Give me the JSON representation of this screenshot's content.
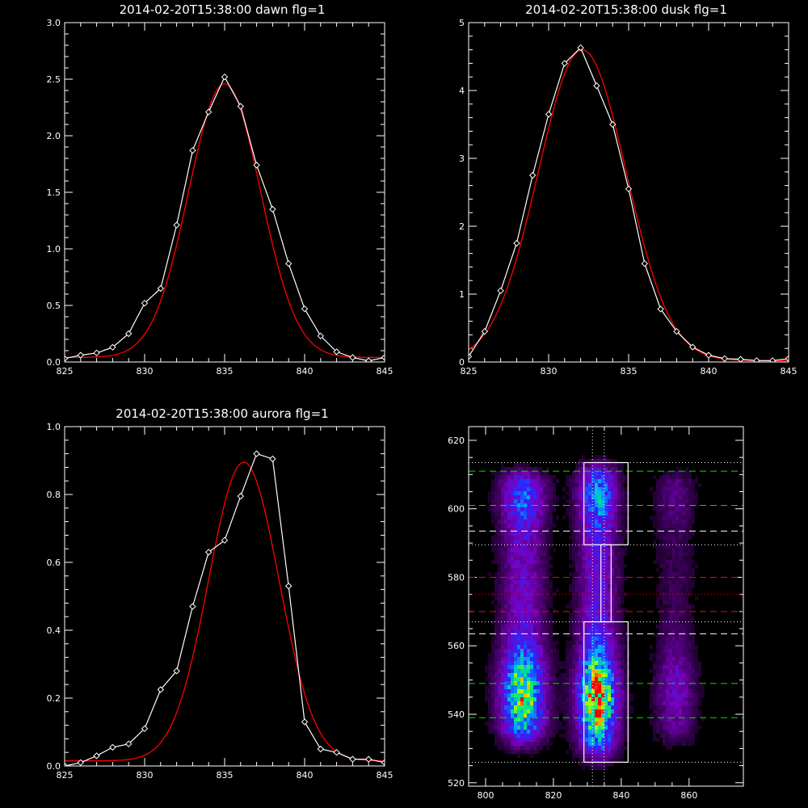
{
  "colors": {
    "background": "#000000",
    "data": "#ffffff",
    "fit": "#ff0000",
    "green": "#00e000",
    "red": "#ff0000",
    "white": "#ffffff"
  },
  "chart_data": [
    {
      "type": "line",
      "title": "2014-02-20T15:38:00 dawn flg=1",
      "xlim": [
        825,
        845
      ],
      "ylim": [
        0,
        3
      ],
      "xticks": [
        825,
        830,
        835,
        840,
        845
      ],
      "yticks": [
        0.0,
        0.5,
        1.0,
        1.5,
        2.0,
        2.5,
        3.0
      ],
      "xtick_labels": [
        "825",
        "830",
        "835",
        "840",
        "845"
      ],
      "ytick_labels": [
        "0.0",
        "0.5",
        "1.0",
        "1.5",
        "2.0",
        "2.5",
        "3.0"
      ],
      "series": [
        {
          "style": "data",
          "x": [
            825,
            826,
            827,
            828,
            829,
            830,
            831,
            832,
            833,
            834,
            835,
            836,
            837,
            838,
            839,
            840,
            841,
            842,
            843,
            844,
            845
          ],
          "y": [
            0.03,
            0.06,
            0.08,
            0.13,
            0.25,
            0.52,
            0.65,
            1.21,
            1.87,
            2.21,
            2.52,
            2.26,
            1.74,
            1.35,
            0.87,
            0.47,
            0.23,
            0.09,
            0.04,
            0.01,
            0.04
          ]
        },
        {
          "style": "fit",
          "gauss": {
            "amp": 2.42,
            "center": 835.0,
            "sigma": 2.25,
            "offset": 0.04
          }
        }
      ]
    },
    {
      "type": "line",
      "title": "2014-02-20T15:38:00 dusk flg=1",
      "xlim": [
        825,
        845
      ],
      "ylim": [
        0,
        5
      ],
      "xticks": [
        825,
        830,
        835,
        840,
        845
      ],
      "yticks": [
        0,
        1,
        2,
        3,
        4,
        5
      ],
      "xtick_labels": [
        "825",
        "830",
        "835",
        "840",
        "845"
      ],
      "ytick_labels": [
        "0",
        "1",
        "2",
        "3",
        "4",
        "5"
      ],
      "series": [
        {
          "style": "data",
          "x": [
            825,
            826,
            827,
            828,
            829,
            830,
            831,
            832,
            833,
            834,
            835,
            836,
            837,
            838,
            839,
            840,
            841,
            842,
            843,
            844,
            845
          ],
          "y": [
            0.08,
            0.45,
            1.05,
            1.75,
            2.75,
            3.65,
            4.4,
            4.63,
            4.07,
            3.5,
            2.55,
            1.45,
            0.78,
            0.45,
            0.22,
            0.1,
            0.05,
            0.04,
            0.02,
            0.02,
            0.05
          ]
        },
        {
          "style": "fit",
          "gauss": {
            "amp": 4.58,
            "center": 832.1,
            "sigma": 2.75,
            "offset": 0.02
          }
        }
      ]
    },
    {
      "type": "line",
      "title": "2014-02-20T15:38:00 aurora flg=1",
      "xlim": [
        825,
        845
      ],
      "ylim": [
        0,
        1
      ],
      "xticks": [
        825,
        830,
        835,
        840,
        845
      ],
      "yticks": [
        0.0,
        0.2,
        0.4,
        0.6,
        0.8,
        1.0
      ],
      "xtick_labels": [
        "825",
        "830",
        "835",
        "840",
        "845"
      ],
      "ytick_labels": [
        "0.0",
        "0.2",
        "0.4",
        "0.6",
        "0.8",
        "1.0"
      ],
      "series": [
        {
          "style": "data",
          "x": [
            825,
            826,
            827,
            828,
            829,
            830,
            831,
            832,
            833,
            834,
            835,
            836,
            837,
            838,
            839,
            840,
            841,
            842,
            843,
            844,
            845
          ],
          "y": [
            0.0,
            0.01,
            0.03,
            0.055,
            0.065,
            0.11,
            0.225,
            0.28,
            0.47,
            0.63,
            0.665,
            0.795,
            0.92,
            0.905,
            0.53,
            0.13,
            0.05,
            0.04,
            0.02,
            0.02,
            0.01
          ]
        },
        {
          "style": "fit",
          "gauss": {
            "amp": 0.88,
            "center": 836.2,
            "sigma": 2.2,
            "offset": 0.015
          }
        }
      ]
    },
    {
      "type": "heatmap",
      "title": "",
      "xlim": [
        795,
        876
      ],
      "ylim": [
        519,
        624
      ],
      "xticks": [
        800,
        820,
        840,
        860
      ],
      "yticks": [
        520,
        540,
        560,
        580,
        600,
        620
      ],
      "xtick_labels": [
        "800",
        "820",
        "840",
        "860"
      ],
      "ytick_labels": [
        "520",
        "540",
        "560",
        "580",
        "600",
        "620"
      ],
      "emission_columns": [
        {
          "x_center": 811,
          "x_width": 4.5,
          "y_range": [
            531,
            612
          ],
          "peak": 0.85,
          "peak_y": 546
        },
        {
          "x_center": 833,
          "x_width": 4.0,
          "y_range": [
            527,
            614
          ],
          "peak": 1.0,
          "peak_y": 545
        },
        {
          "x_center": 856,
          "x_width": 4.0,
          "y_range": [
            531,
            612
          ],
          "peak": 0.3,
          "peak_y": 547
        }
      ],
      "vertical_dotted_lines_x": [
        831.5,
        835
      ],
      "horizontal_lines": [
        {
          "y": 613.5,
          "color": "white",
          "style": "dotted"
        },
        {
          "y": 611,
          "color": "green",
          "style": "dashed"
        },
        {
          "y": 601,
          "color": "green",
          "style": "dashed"
        },
        {
          "y": 593.5,
          "color": "white",
          "style": "dashed"
        },
        {
          "y": 589.5,
          "color": "white",
          "style": "dotted"
        },
        {
          "y": 580,
          "color": "red",
          "style": "dashed"
        },
        {
          "y": 575,
          "color": "red",
          "style": "dotted"
        },
        {
          "y": 570,
          "color": "red",
          "style": "dashed"
        },
        {
          "y": 567,
          "color": "white",
          "style": "dotted"
        },
        {
          "y": 563.5,
          "color": "white",
          "style": "dashed"
        },
        {
          "y": 549,
          "color": "green",
          "style": "dashed"
        },
        {
          "y": 539,
          "color": "green",
          "style": "dashed"
        },
        {
          "y": 526,
          "color": "white",
          "style": "dotted"
        }
      ],
      "outline_boxes": [
        {
          "x": [
            829,
            842
          ],
          "y": [
            589.5,
            613.5
          ]
        },
        {
          "x": [
            834,
            837
          ],
          "y": [
            567,
            589.5
          ]
        },
        {
          "x": [
            829,
            842
          ],
          "y": [
            526,
            567
          ]
        }
      ]
    }
  ]
}
